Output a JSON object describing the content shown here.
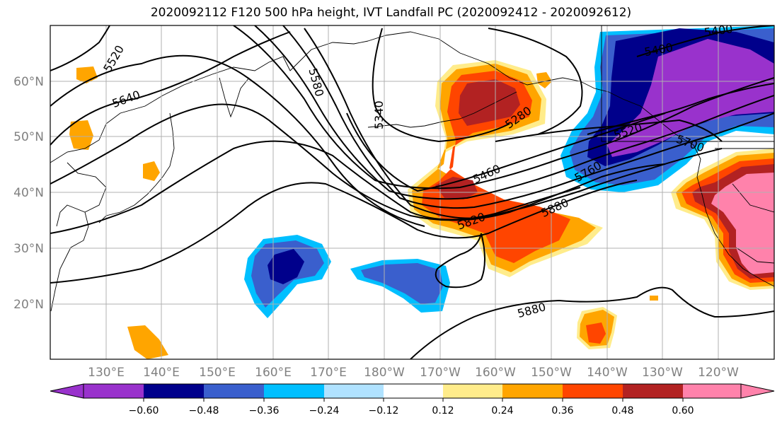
{
  "title": "2020092112 F120 500 hPa height, IVT Landfall PC (2020092412 - 2020092612)",
  "longitude_labels": [
    "130°E",
    "140°E",
    "150°E",
    "160°E",
    "170°E",
    "180°W",
    "170°W",
    "160°W",
    "150°W",
    "140°W",
    "130°W",
    "120°W"
  ],
  "latitude_labels": [
    "60°N",
    "50°N",
    "40°N",
    "30°N",
    "20°N"
  ],
  "contour_labels": [
    "5520",
    "5640",
    "5580",
    "5340",
    "5280",
    "5460",
    "5820",
    "5880",
    "5880",
    "5400",
    "5520",
    "5760",
    "5700",
    "5400"
  ],
  "colorbar": {
    "tick_labels": [
      "−0.60",
      "−0.48",
      "−0.36",
      "−0.24",
      "−0.12",
      "0.12",
      "0.24",
      "0.36",
      "0.48",
      "0.60"
    ],
    "colors": [
      "#9932CC",
      "#00008B",
      "#3A5FCD",
      "#00BFFF",
      "#B0E2FF",
      "#FFFFFF",
      "#FFEC8B",
      "#FFA500",
      "#FF4500",
      "#B22222",
      "#FF82AB"
    ]
  }
}
